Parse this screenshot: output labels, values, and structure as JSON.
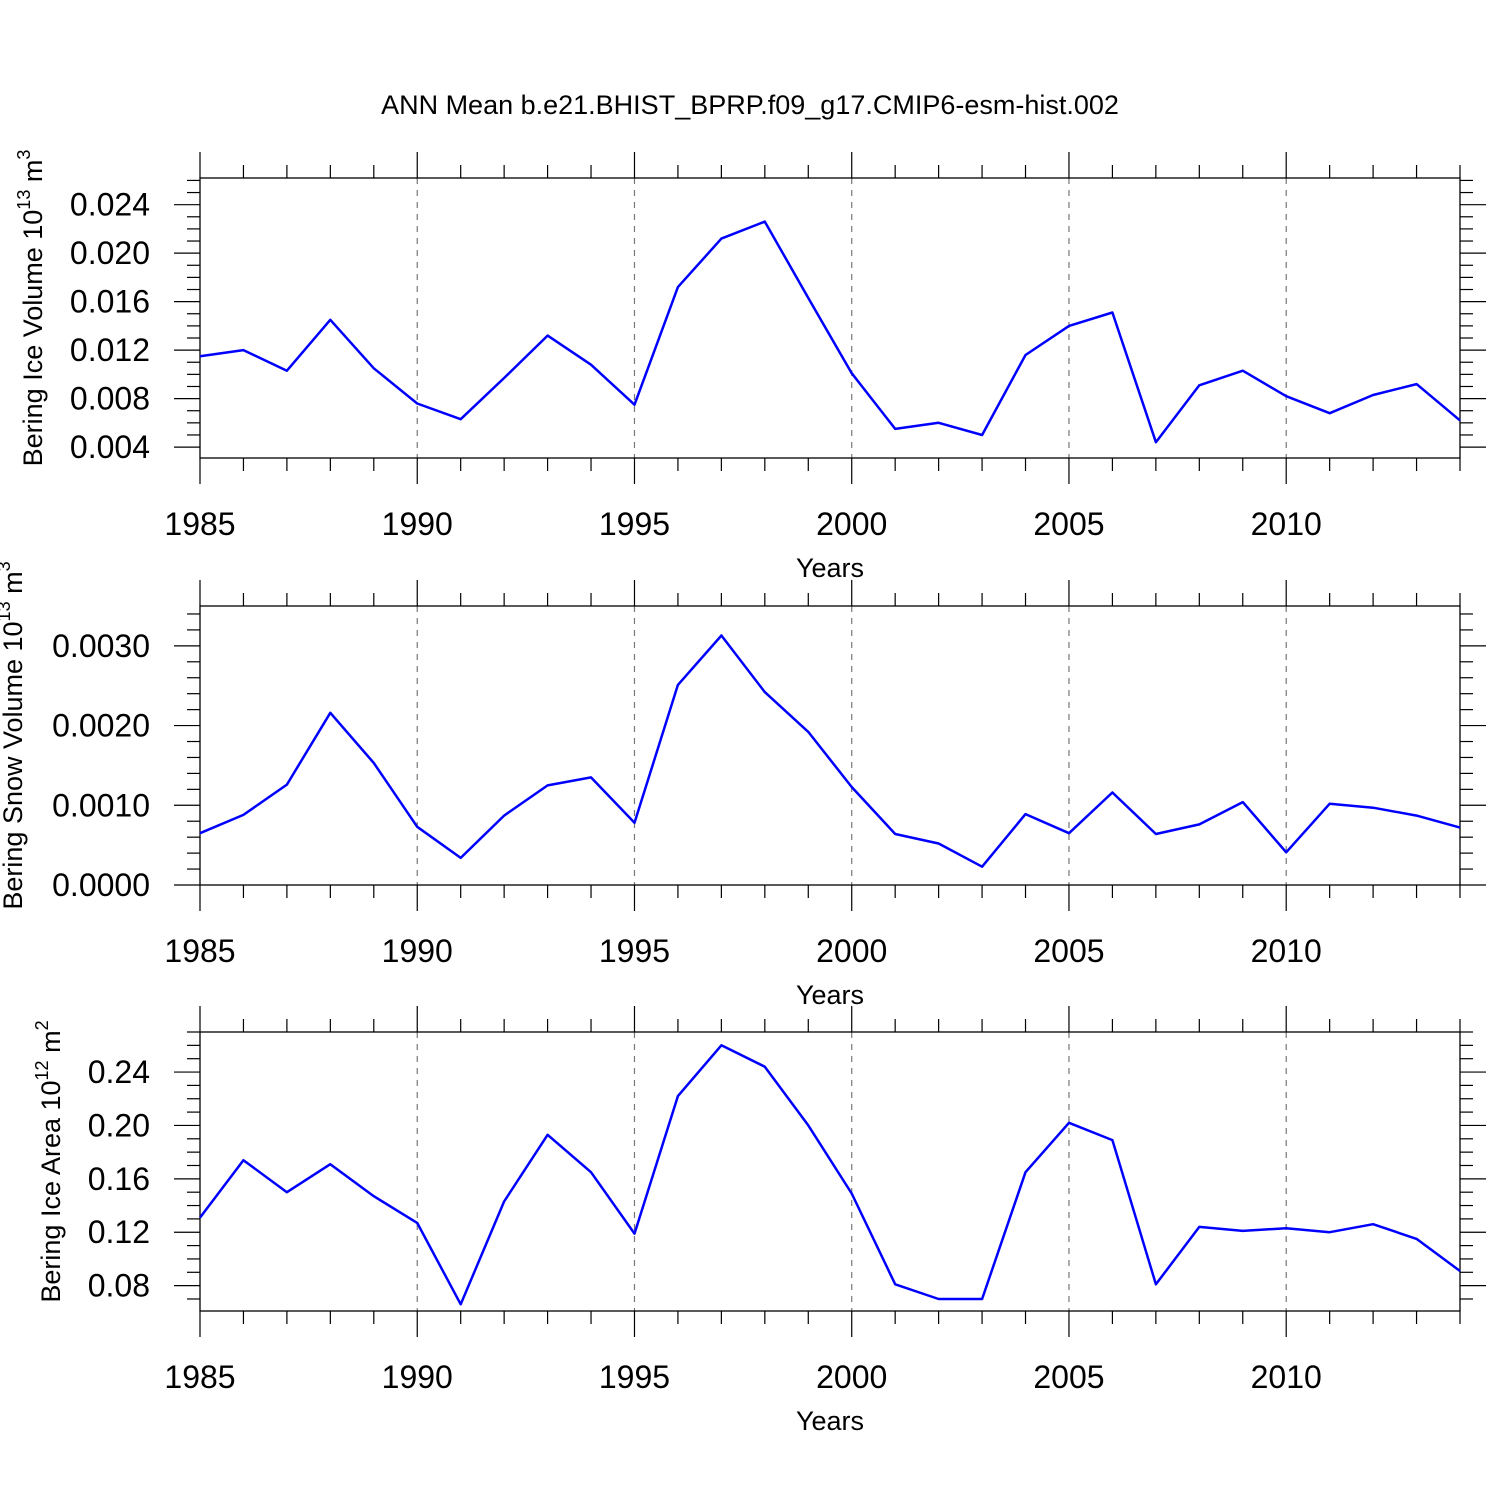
{
  "title": "ANN Mean b.e21.BHIST_BPRP.f09_g17.CMIP6-esm-hist.002",
  "colors": {
    "line": "#0000ff",
    "grid": "#777777",
    "axis": "#000000"
  },
  "chart_data": [
    {
      "type": "line",
      "ylabel": "Bering Ice Volume 10",
      "ylabel_sup": "13",
      "ylabel_unit": "m",
      "ylabel_unit_sup": "3",
      "xlabel": "Years",
      "xlim": [
        1985,
        2014
      ],
      "ylim": [
        0.0031,
        0.0262
      ],
      "yticks": [
        0.004,
        0.008,
        0.012,
        0.016,
        0.02,
        0.024
      ],
      "ytick_labels": [
        "0.004",
        "0.008",
        "0.012",
        "0.016",
        "0.020",
        "0.024"
      ],
      "ytick_minor_step": 0.001,
      "xticks": [
        1985,
        1990,
        1995,
        2000,
        2005,
        2010
      ],
      "xtick_labels": [
        "1985",
        "1990",
        "1995",
        "2000",
        "2005",
        "2010"
      ],
      "grid": "vertical dashed at major x ticks",
      "x": [
        1985,
        1986,
        1987,
        1988,
        1989,
        1990,
        1991,
        1992,
        1993,
        1994,
        1995,
        1996,
        1997,
        1998,
        1999,
        2000,
        2001,
        2002,
        2003,
        2004,
        2005,
        2006,
        2007,
        2008,
        2009,
        2010,
        2011,
        2012,
        2013,
        2014
      ],
      "values": [
        0.0115,
        0.012,
        0.0103,
        0.0145,
        0.0105,
        0.0076,
        0.0063,
        0.0097,
        0.0132,
        0.0108,
        0.0075,
        0.0172,
        0.0212,
        0.0226,
        0.0163,
        0.0101,
        0.0055,
        0.006,
        0.005,
        0.0116,
        0.014,
        0.0151,
        0.0044,
        0.0091,
        0.0103,
        0.0082,
        0.0068,
        0.0083,
        0.0092,
        0.0062
      ]
    },
    {
      "type": "line",
      "ylabel": "Bering Snow Volume 10",
      "ylabel_sup": "13",
      "ylabel_unit": "m",
      "ylabel_unit_sup": "3",
      "xlabel": "Years",
      "xlim": [
        1985,
        2014
      ],
      "ylim": [
        0.0,
        0.0035
      ],
      "yticks": [
        0.0,
        0.001,
        0.002,
        0.003
      ],
      "ytick_labels": [
        "0.0000",
        "0.0010",
        "0.0020",
        "0.0030"
      ],
      "ytick_minor_step": 0.0002,
      "xticks": [
        1985,
        1990,
        1995,
        2000,
        2005,
        2010
      ],
      "xtick_labels": [
        "1985",
        "1990",
        "1995",
        "2000",
        "2005",
        "2010"
      ],
      "grid": "vertical dashed at major x ticks",
      "x": [
        1985,
        1986,
        1987,
        1988,
        1989,
        1990,
        1991,
        1992,
        1993,
        1994,
        1995,
        1996,
        1997,
        1998,
        1999,
        2000,
        2001,
        2002,
        2003,
        2004,
        2005,
        2006,
        2007,
        2008,
        2009,
        2010,
        2011,
        2012,
        2013,
        2014
      ],
      "values": [
        0.00065,
        0.00088,
        0.00126,
        0.00216,
        0.00153,
        0.00073,
        0.00034,
        0.00087,
        0.00125,
        0.00135,
        0.00078,
        0.00251,
        0.00313,
        0.00242,
        0.00192,
        0.00123,
        0.00064,
        0.00052,
        0.00023,
        0.00089,
        0.00065,
        0.00116,
        0.00064,
        0.00076,
        0.00104,
        0.00041,
        0.00102,
        0.00097,
        0.00087,
        0.00072
      ]
    },
    {
      "type": "line",
      "ylabel": "Bering Ice Area 10",
      "ylabel_sup": "12",
      "ylabel_unit": "m",
      "ylabel_unit_sup": "2",
      "xlabel": "Years",
      "xlim": [
        1985,
        2014
      ],
      "ylim": [
        0.061,
        0.27
      ],
      "yticks": [
        0.08,
        0.12,
        0.16,
        0.2,
        0.24
      ],
      "ytick_labels": [
        "0.08",
        "0.12",
        "0.16",
        "0.20",
        "0.24"
      ],
      "ytick_minor_step": 0.01,
      "xticks": [
        1985,
        1990,
        1995,
        2000,
        2005,
        2010
      ],
      "xtick_labels": [
        "1985",
        "1990",
        "1995",
        "2000",
        "2005",
        "2010"
      ],
      "grid": "vertical dashed at major x ticks",
      "x": [
        1985,
        1986,
        1987,
        1988,
        1989,
        1990,
        1991,
        1992,
        1993,
        1994,
        1995,
        1996,
        1997,
        1998,
        1999,
        2000,
        2001,
        2002,
        2003,
        2004,
        2005,
        2006,
        2007,
        2008,
        2009,
        2010,
        2011,
        2012,
        2013,
        2014
      ],
      "values": [
        0.131,
        0.174,
        0.15,
        0.171,
        0.147,
        0.127,
        0.066,
        0.143,
        0.193,
        0.165,
        0.119,
        0.222,
        0.26,
        0.244,
        0.2,
        0.149,
        0.081,
        0.07,
        0.07,
        0.165,
        0.202,
        0.189,
        0.081,
        0.124,
        0.121,
        0.123,
        0.12,
        0.126,
        0.115,
        0.091
      ]
    }
  ]
}
